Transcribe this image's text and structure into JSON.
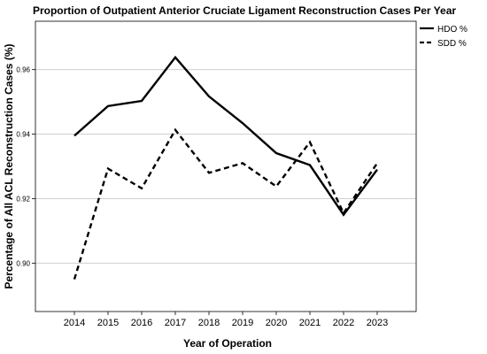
{
  "chart_data": {
    "type": "line",
    "title": "Proportion of Outpatient Anterior Cruciate Ligament Reconstruction Cases Per Year",
    "xlabel": "Year of Operation",
    "ylabel": "Percentage of All ACL Reconstruction Cases (%)",
    "x": [
      "2014",
      "2015",
      "2016",
      "2017",
      "2018",
      "2019",
      "2020",
      "2021",
      "2022",
      "2023"
    ],
    "yticks": [
      "0.90",
      "0.92",
      "0.94",
      "0.96"
    ],
    "ylim": [
      0.885,
      0.975
    ],
    "grid": "horizontal",
    "legend_position": "top-right",
    "series": [
      {
        "name": "HDO %",
        "style": "solid",
        "color": "#000000",
        "values": [
          0.9395,
          0.9487,
          0.9503,
          0.9638,
          0.9517,
          0.9434,
          0.9341,
          0.9304,
          0.915,
          0.929
        ]
      },
      {
        "name": "SDD %",
        "style": "dashed",
        "color": "#000000",
        "values": [
          0.895,
          0.9293,
          0.9232,
          0.9413,
          0.928,
          0.931,
          0.9238,
          0.9375,
          0.9155,
          0.931
        ]
      }
    ]
  }
}
